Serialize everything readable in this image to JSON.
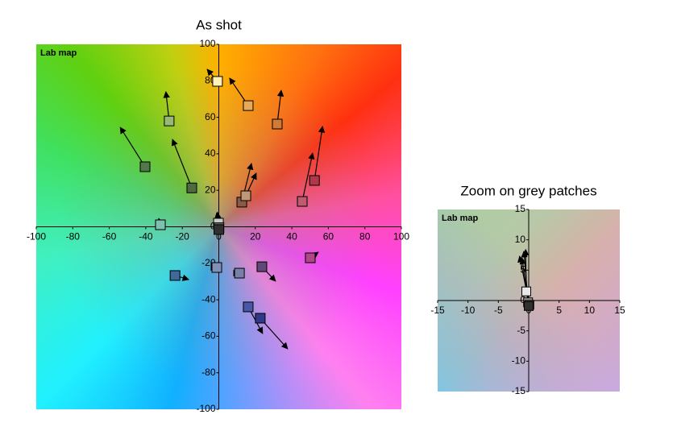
{
  "chart_data": [
    {
      "type": "scatter",
      "title": "As shot",
      "label": "Lab map",
      "x": [
        -0.7,
        16.1,
        32,
        -27.2,
        -40.4,
        -14.8,
        12.6,
        14.8,
        45.7,
        52.4,
        -32,
        -0.2,
        0.1,
        0,
        -24,
        -1.1,
        11.3,
        23.6,
        50.1,
        16.1,
        22.7
      ],
      "y": [
        79.7,
        66.4,
        56.3,
        58,
        32.9,
        21.3,
        13.5,
        17,
        13.9,
        25.4,
        1.1,
        2,
        -0.5,
        -1.5,
        -26.7,
        -22.3,
        -25.4,
        -21.9,
        -17,
        -43.9,
        -50.1
      ],
      "target_x": [
        -6.4,
        5.9,
        34.2,
        -29,
        -54,
        -25.4,
        17.9,
        20.5,
        51.4,
        56.8,
        -32.9,
        -1.2,
        -0.8,
        -1.5,
        -16.5,
        -1.1,
        11.3,
        31.1,
        54.5,
        24,
        37.7
      ],
      "target_y": [
        86.3,
        81.5,
        74.8,
        74,
        54.5,
        47.9,
        34.7,
        29.4,
        40.4,
        55,
        4.6,
        7.5,
        8,
        6.5,
        -28.9,
        -22.3,
        -25.4,
        -29.8,
        -13.9,
        -58.5,
        -66.9
      ],
      "colors": [
        "#fff2b8",
        "#e8a858",
        "#d07a38",
        "#98b878",
        "#507848",
        "#4e6a40",
        "#8a5a48",
        "#c09878",
        "#c05a70",
        "#b03848",
        "#80c0b0",
        "#c8c8c8",
        "#707070",
        "#303030",
        "#406898",
        "#8090b8",
        "#7880a8",
        "#604878",
        "#b04888",
        "#4858a8",
        "#303888"
      ],
      "xlim": [
        -100,
        100
      ],
      "ylim": [
        -100,
        100
      ],
      "xticks": [
        -100,
        -80,
        -60,
        -40,
        -20,
        0,
        20,
        40,
        60,
        80,
        100
      ],
      "yticks": [
        -100,
        -80,
        -60,
        -40,
        -20,
        0,
        20,
        40,
        60,
        80,
        100
      ]
    },
    {
      "type": "scatter",
      "title": "Zoom on grey patches",
      "label": "Lab map",
      "x": [
        -0.4,
        -0.1,
        0.1,
        0
      ],
      "y": [
        1.5,
        -0.3,
        -0.7,
        -0.9
      ],
      "target_x": [
        -0.5,
        -0.8,
        -1.5,
        -1.1
      ],
      "target_y": [
        8.4,
        8.1,
        7.3,
        7
      ],
      "colors": [
        "#e8e8e8",
        "#a0a0a0",
        "#606060",
        "#303030"
      ],
      "xlim": [
        -15,
        15
      ],
      "ylim": [
        -15,
        15
      ],
      "xticks": [
        -15,
        -10,
        -5,
        0,
        5,
        10,
        15
      ],
      "yticks": [
        -15,
        -10,
        -5,
        0,
        5,
        10,
        15
      ]
    }
  ]
}
